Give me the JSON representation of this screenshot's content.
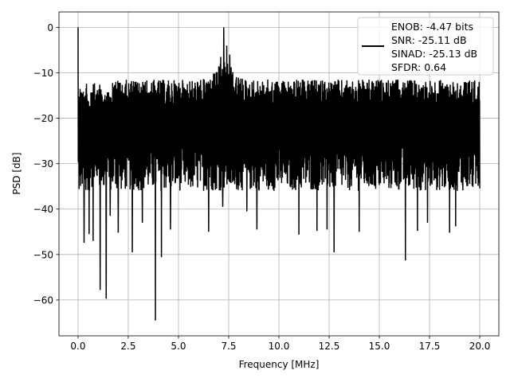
{
  "chart_data": {
    "type": "line",
    "xlabel": "Frequency [MHz]",
    "ylabel": "PSD [dB]",
    "xlim": [
      -0.95,
      20.95
    ],
    "ylim": [
      -67.9,
      3.4
    ],
    "xticks": [
      0.0,
      2.5,
      5.0,
      7.5,
      10.0,
      12.5,
      15.0,
      17.5,
      20.0
    ],
    "xtick_labels": [
      "0.0",
      "2.5",
      "5.0",
      "7.5",
      "10.0",
      "12.5",
      "15.0",
      "17.5",
      "20.0"
    ],
    "yticks": [
      0,
      -10,
      -20,
      -30,
      -40,
      -50,
      -60
    ],
    "ytick_labels": [
      "0",
      "−10",
      "−20",
      "−30",
      "−40",
      "−50",
      "−60"
    ],
    "grid": true,
    "legend_position": "top-right",
    "series": [
      {
        "name": "ENOB: -4.47 bits\nSNR: -25.11 dB\nSINAD: -25.13 dB\nSFDR: 0.64",
        "legend_lines": [
          "ENOB: -4.47 bits",
          "SNR: -25.11 dB",
          "SINAD: -25.13 dB",
          "SFDR: 0.64"
        ],
        "color": "#000000",
        "x_range": [
          0.0,
          20.0
        ],
        "points": 2000,
        "noise_floor_db": -25.1,
        "upper_envelope_db": -11.5,
        "lower_envelope_db": -36.0,
        "peaks": [
          {
            "x": 0.0,
            "y": 0.0
          },
          {
            "x": 0.05,
            "y": -35.6
          },
          {
            "x": 0.3,
            "y": -47.4
          },
          {
            "x": 0.55,
            "y": -45.5
          },
          {
            "x": 0.75,
            "y": -47.0
          },
          {
            "x": 1.1,
            "y": -57.8
          },
          {
            "x": 1.4,
            "y": -59.7
          },
          {
            "x": 1.6,
            "y": -41.5
          },
          {
            "x": 2.0,
            "y": -45.2
          },
          {
            "x": 2.7,
            "y": -49.5
          },
          {
            "x": 3.2,
            "y": -43.0
          },
          {
            "x": 3.85,
            "y": -64.5
          },
          {
            "x": 4.15,
            "y": -50.6
          },
          {
            "x": 4.6,
            "y": -44.5
          },
          {
            "x": 6.5,
            "y": -45.0
          },
          {
            "x": 7.1,
            "y": -6.5
          },
          {
            "x": 7.25,
            "y": 0.0
          },
          {
            "x": 7.4,
            "y": -4.0
          },
          {
            "x": 7.55,
            "y": -6.0
          },
          {
            "x": 7.2,
            "y": -39.5
          },
          {
            "x": 7.8,
            "y": -34.5
          },
          {
            "x": 8.4,
            "y": -40.5
          },
          {
            "x": 8.9,
            "y": -44.5
          },
          {
            "x": 11.0,
            "y": -45.6
          },
          {
            "x": 11.9,
            "y": -44.8
          },
          {
            "x": 12.4,
            "y": -44.5
          },
          {
            "x": 12.75,
            "y": -49.5
          },
          {
            "x": 14.0,
            "y": -45.0
          },
          {
            "x": 16.3,
            "y": -51.3
          },
          {
            "x": 16.9,
            "y": -44.8
          },
          {
            "x": 17.4,
            "y": -43.0
          },
          {
            "x": 18.5,
            "y": -45.2
          },
          {
            "x": 18.8,
            "y": -43.8
          }
        ]
      }
    ]
  }
}
